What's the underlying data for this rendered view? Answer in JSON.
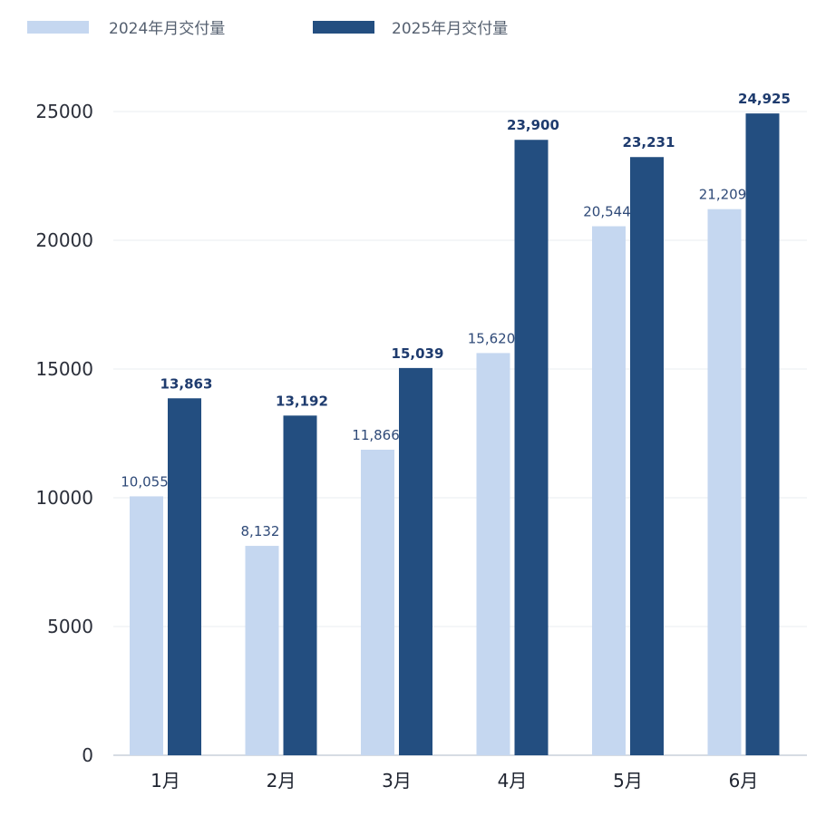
{
  "chart_data": {
    "type": "bar",
    "categories": [
      "1月",
      "2月",
      "3月",
      "4月",
      "5月",
      "6月"
    ],
    "series": [
      {
        "name": "2024年月交付量",
        "color": "#c5d7f0",
        "values": [
          10055,
          8132,
          11866,
          15620,
          20544,
          21209
        ],
        "labels": [
          "10,055",
          "8,132",
          "11,866",
          "15,620",
          "20,544",
          "21,209"
        ]
      },
      {
        "name": "2025年月交付量",
        "color": "#234e80",
        "values": [
          13863,
          13192,
          15039,
          23900,
          23231,
          24925
        ],
        "labels": [
          "13,863",
          "13,192",
          "15,039",
          "23,900",
          "23,231",
          "24,925"
        ]
      }
    ],
    "yticks": [
      "0",
      "5000",
      "10000",
      "15000",
      "20000",
      "25000"
    ],
    "ylim": [
      0,
      25000
    ],
    "grid": true,
    "legend_position": "top-left"
  }
}
